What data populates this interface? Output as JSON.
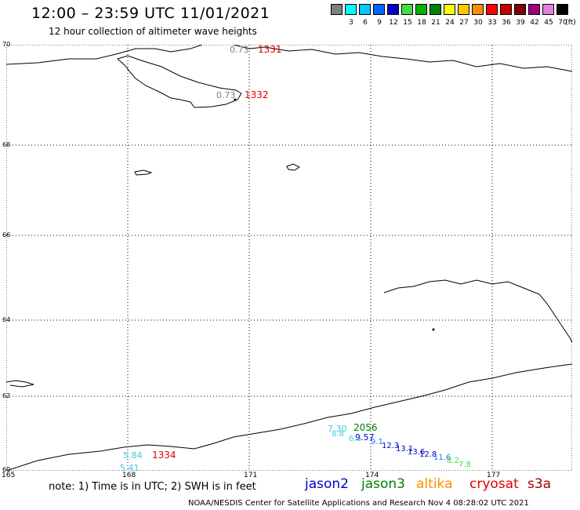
{
  "title": "12:00 – 23:59 UTC 11/01/2021",
  "subtitle": "12 hour collection of altimeter wave heights",
  "color_scale": {
    "unit_label": "(ft)",
    "items": [
      {
        "label": "",
        "color": "#808080"
      },
      {
        "label": "3",
        "color": "#00ffff"
      },
      {
        "label": "6",
        "color": "#00c8ff"
      },
      {
        "label": "9",
        "color": "#0064ff"
      },
      {
        "label": "12",
        "color": "#0000c8"
      },
      {
        "label": "15",
        "color": "#40e040"
      },
      {
        "label": "18",
        "color": "#00b400"
      },
      {
        "label": "21",
        "color": "#008000"
      },
      {
        "label": "24",
        "color": "#ffff00"
      },
      {
        "label": "27",
        "color": "#ffc800"
      },
      {
        "label": "30",
        "color": "#ff8c00"
      },
      {
        "label": "33",
        "color": "#ff0000"
      },
      {
        "label": "36",
        "color": "#c80000"
      },
      {
        "label": "39",
        "color": "#800000"
      },
      {
        "label": "42",
        "color": "#a00080"
      },
      {
        "label": "45",
        "color": "#e080e0"
      },
      {
        "label": "70",
        "color": "#000000"
      }
    ]
  },
  "latitudes": [
    "70",
    "68",
    "66",
    "64",
    "62",
    "60"
  ],
  "longitudes": [
    "165",
    "168",
    "171",
    "174",
    "177"
  ],
  "observations": [
    {
      "label": "0.73",
      "color": "#808080"
    },
    {
      "label": "1331",
      "color": "#e00000"
    },
    {
      "label": "0.73",
      "color": "#808080"
    },
    {
      "label": "1332",
      "color": "#e00000"
    },
    {
      "label": "5.84",
      "color": "#40c8e0"
    },
    {
      "label": "5.41",
      "color": "#40c8e0"
    },
    {
      "label": "1334",
      "color": "#e00000"
    },
    {
      "label": "7.30",
      "color": "#40c8e0"
    },
    {
      "label": "2056",
      "color": "#008000"
    },
    {
      "label": "9.57",
      "color": "#0000c8"
    }
  ],
  "note": "note:  1) Time is in UTC;  2) SWH is in feet",
  "satellites": [
    {
      "name": "jason2",
      "color": "#0000cc"
    },
    {
      "name": "jason3",
      "color": "#008000"
    },
    {
      "name": "altika",
      "color": "#ff8c00"
    },
    {
      "name": "cryosat",
      "color": "#e00000"
    },
    {
      "name": "s3a",
      "color": "#a00000"
    }
  ],
  "footer": "NOAA/NESDIS Center for Satellite Applications and Research     Nov  4 08:28:02 UTC 2021"
}
